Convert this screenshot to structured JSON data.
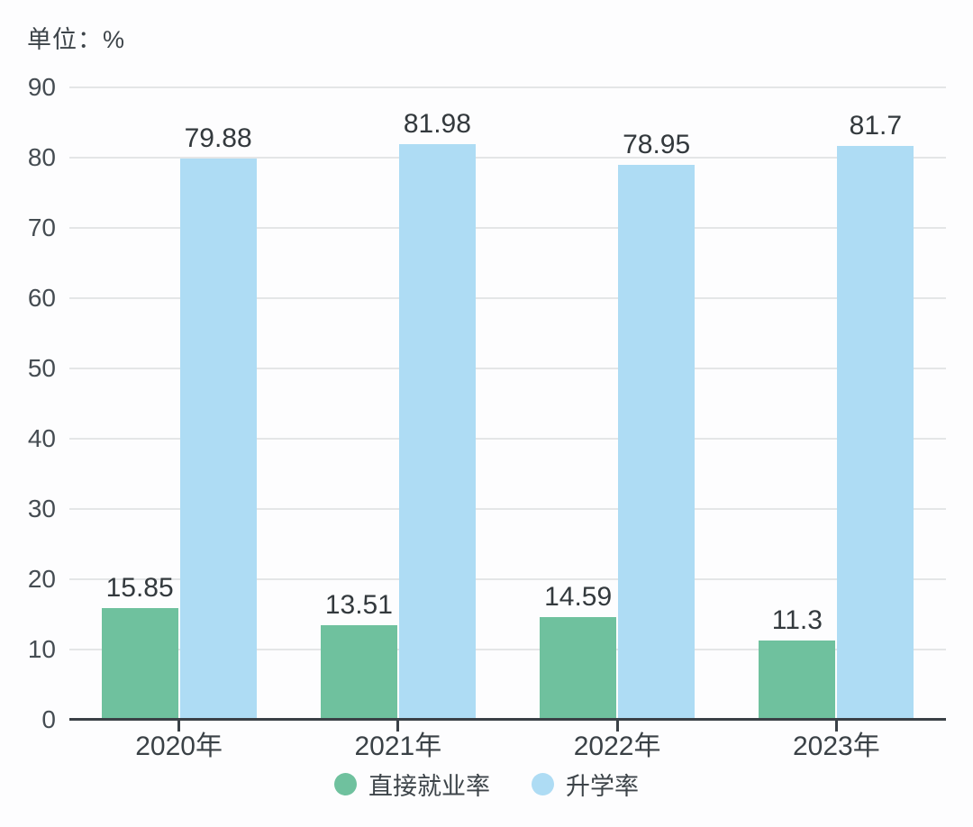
{
  "unit_label": "单位：%",
  "colors": {
    "employment_green": "#6fc19e",
    "enrollment_blue": "#aedcf4",
    "grid": "#e4e6e7",
    "axis": "#3a4046",
    "text": "#3d4449"
  },
  "legend": {
    "items": [
      {
        "label": "直接就业率",
        "color": "#6fc19e"
      },
      {
        "label": "升学率",
        "color": "#aedcf4"
      }
    ]
  },
  "chart_data": {
    "type": "bar",
    "title": "",
    "unit": "%",
    "categories": [
      "2020年",
      "2021年",
      "2022年",
      "2023年"
    ],
    "series": [
      {
        "name": "直接就业率",
        "color": "#6fc19e",
        "values": [
          15.85,
          13.51,
          14.59,
          11.3
        ]
      },
      {
        "name": "升学率",
        "color": "#aedcf4",
        "values": [
          79.88,
          81.98,
          78.95,
          81.7
        ]
      }
    ],
    "ylim": [
      0,
      90
    ],
    "ytick_step": 10,
    "yticks": [
      0,
      10,
      20,
      30,
      40,
      50,
      60,
      70,
      80,
      90
    ],
    "grid": true,
    "value_labels": true,
    "legend_position": "bottom",
    "xlabel": "",
    "ylabel": ""
  }
}
